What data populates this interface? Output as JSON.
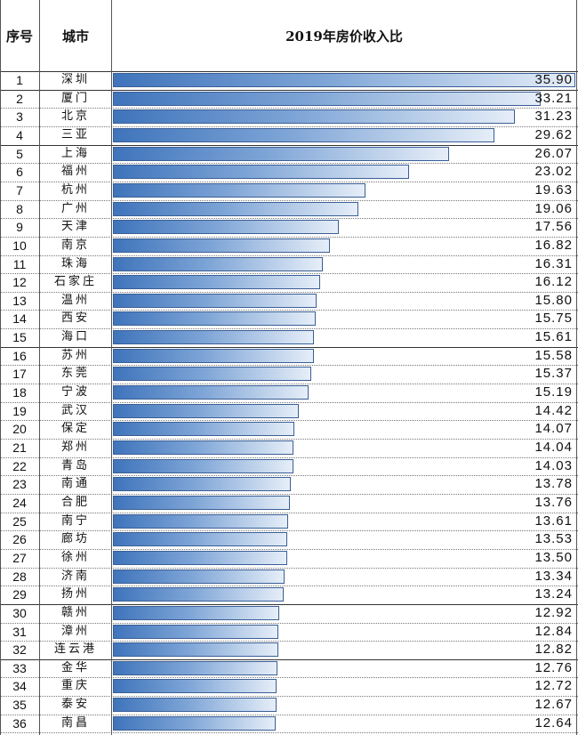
{
  "header": {
    "col_no": "序号",
    "col_city": "城市",
    "col_value": "2019年房价收入比"
  },
  "chart_data": {
    "type": "bar",
    "orientation": "horizontal",
    "title": "2019年房价收入比",
    "xlim": [
      0,
      35.9
    ],
    "rows": [
      {
        "no": "1",
        "city": "深圳",
        "value": 35.9,
        "label": "35.90"
      },
      {
        "no": "2",
        "city": "厦门",
        "value": 33.21,
        "label": "33.21"
      },
      {
        "no": "3",
        "city": "北京",
        "value": 31.23,
        "label": "31.23"
      },
      {
        "no": "4",
        "city": "三亚",
        "value": 29.62,
        "label": "29.62"
      },
      {
        "no": "5",
        "city": "上海",
        "value": 26.07,
        "label": "26.07"
      },
      {
        "no": "6",
        "city": "福州",
        "value": 23.02,
        "label": "23.02"
      },
      {
        "no": "7",
        "city": "杭州",
        "value": 19.63,
        "label": "19.63"
      },
      {
        "no": "8",
        "city": "广州",
        "value": 19.06,
        "label": "19.06"
      },
      {
        "no": "9",
        "city": "天津",
        "value": 17.56,
        "label": "17.56"
      },
      {
        "no": "10",
        "city": "南京",
        "value": 16.82,
        "label": "16.82"
      },
      {
        "no": "11",
        "city": "珠海",
        "value": 16.31,
        "label": "16.31"
      },
      {
        "no": "12",
        "city": "石家庄",
        "value": 16.12,
        "label": "16.12"
      },
      {
        "no": "13",
        "city": "温州",
        "value": 15.8,
        "label": "15.80"
      },
      {
        "no": "14",
        "city": "西安",
        "value": 15.75,
        "label": "15.75"
      },
      {
        "no": "15",
        "city": "海口",
        "value": 15.61,
        "label": "15.61"
      },
      {
        "no": "16",
        "city": "苏州",
        "value": 15.58,
        "label": "15.58"
      },
      {
        "no": "17",
        "city": "东莞",
        "value": 15.37,
        "label": "15.37"
      },
      {
        "no": "18",
        "city": "宁波",
        "value": 15.19,
        "label": "15.19"
      },
      {
        "no": "19",
        "city": "武汉",
        "value": 14.42,
        "label": "14.42"
      },
      {
        "no": "20",
        "city": "保定",
        "value": 14.07,
        "label": "14.07"
      },
      {
        "no": "21",
        "city": "郑州",
        "value": 14.04,
        "label": "14.04"
      },
      {
        "no": "22",
        "city": "青岛",
        "value": 14.03,
        "label": "14.03"
      },
      {
        "no": "23",
        "city": "南通",
        "value": 13.78,
        "label": "13.78"
      },
      {
        "no": "24",
        "city": "合肥",
        "value": 13.76,
        "label": "13.76"
      },
      {
        "no": "25",
        "city": "南宁",
        "value": 13.61,
        "label": "13.61"
      },
      {
        "no": "26",
        "city": "廊坊",
        "value": 13.53,
        "label": "13.53"
      },
      {
        "no": "27",
        "city": "徐州",
        "value": 13.5,
        "label": "13.50"
      },
      {
        "no": "28",
        "city": "济南",
        "value": 13.34,
        "label": "13.34"
      },
      {
        "no": "29",
        "city": "扬州",
        "value": 13.24,
        "label": "13.24"
      },
      {
        "no": "30",
        "city": "赣州",
        "value": 12.92,
        "label": "12.92"
      },
      {
        "no": "31",
        "city": "漳州",
        "value": 12.84,
        "label": "12.84"
      },
      {
        "no": "32",
        "city": "连云港",
        "value": 12.82,
        "label": "12.82"
      },
      {
        "no": "33",
        "city": "金华",
        "value": 12.76,
        "label": "12.76"
      },
      {
        "no": "34",
        "city": "重庆",
        "value": 12.72,
        "label": "12.72"
      },
      {
        "no": "35",
        "city": "泰安",
        "value": 12.67,
        "label": "12.67"
      },
      {
        "no": "36",
        "city": "南昌",
        "value": 12.64,
        "label": "12.64"
      }
    ]
  }
}
